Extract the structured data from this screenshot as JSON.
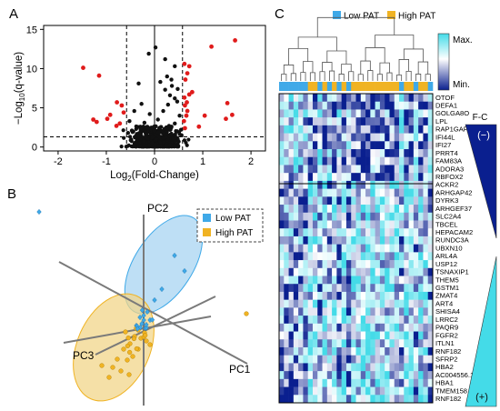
{
  "panels": {
    "a": {
      "letter": "A"
    },
    "b": {
      "letter": "B"
    },
    "c": {
      "letter": "C"
    }
  },
  "colors": {
    "low": "#3fa9e8",
    "high": "#f0b323",
    "sig": "#e01b1b",
    "nonsig": "#111111",
    "heat_dark": "#0a1f8f",
    "heat_light": "#44dbe8",
    "low_ellipse": "#a8d4f2",
    "high_ellipse": "#f2d58a"
  },
  "legend": {
    "low": "Low PAT",
    "high": "High PAT"
  },
  "volcano": {
    "xlabel_prefix": "Log",
    "xlabel_sub": "2",
    "xlabel_suffix": "(Fold-Change)",
    "ylabel_prefix": "−Log",
    "ylabel_sub": "10",
    "ylabel_suffix": "(q-value)",
    "x_ticks": [
      "-2",
      "-1",
      "0",
      "1",
      "2"
    ],
    "y_ticks": [
      "0",
      "5",
      "10",
      "15"
    ]
  },
  "chart_data": [
    {
      "type": "scatter",
      "xlim": [
        -2.3,
        2.3
      ],
      "ylim": [
        -0.5,
        15.5
      ],
      "x_ticks": [
        -2,
        -1,
        0,
        1,
        2
      ],
      "y_ticks": [
        0,
        5,
        10,
        15
      ],
      "thresholds": {
        "x": [
          -0.58,
          0.58
        ],
        "y": 1.3
      },
      "series": [
        {
          "significant": true,
          "points": [
            [
              -1.48,
              10.1
            ],
            [
              -1.15,
              9.1
            ],
            [
              -0.68,
              5.3
            ],
            [
              -0.78,
              5.7
            ],
            [
              -0.92,
              4.1
            ],
            [
              -0.98,
              3.6
            ],
            [
              -0.64,
              4.4
            ],
            [
              -1.2,
              3.2
            ],
            [
              -1.27,
              3.5
            ],
            [
              -0.72,
              3.0
            ],
            [
              -0.79,
              2.7
            ],
            [
              1.18,
              12.8
            ],
            [
              1.67,
              13.6
            ],
            [
              0.62,
              10.6
            ],
            [
              0.72,
              10.3
            ],
            [
              0.68,
              9.4
            ],
            [
              0.64,
              8.6
            ],
            [
              0.78,
              7.0
            ],
            [
              0.72,
              6.7
            ],
            [
              0.62,
              6.3
            ],
            [
              0.67,
              5.7
            ],
            [
              0.63,
              5.3
            ],
            [
              0.68,
              4.6
            ],
            [
              0.66,
              4.0
            ],
            [
              0.61,
              3.3
            ],
            [
              1.51,
              5.6
            ],
            [
              1.61,
              4.1
            ],
            [
              1.04,
              4.0
            ],
            [
              1.48,
              3.6
            ],
            [
              0.92,
              2.6
            ],
            [
              0.63,
              2.4
            ]
          ]
        },
        {
          "significant": false,
          "points": [
            [
              -0.12,
              11.9
            ],
            [
              0.02,
              12.7
            ],
            [
              0.22,
              11.2
            ],
            [
              0.42,
              10.3
            ],
            [
              0.26,
              9.0
            ],
            [
              0.35,
              8.6
            ],
            [
              0.12,
              8.3
            ],
            [
              0.48,
              7.4
            ],
            [
              0.22,
              7.3
            ],
            [
              -0.33,
              8.1
            ],
            [
              0.36,
              7.8
            ],
            [
              0.42,
              6.2
            ],
            [
              0.47,
              5.8
            ],
            [
              0.28,
              5.4
            ],
            [
              -0.27,
              5.5
            ],
            [
              0.32,
              6.6
            ],
            [
              -0.42,
              4.6
            ],
            [
              0.18,
              4.6
            ],
            [
              -0.1,
              4.2
            ],
            [
              0.52,
              4.0
            ],
            [
              -0.52,
              3.3
            ],
            [
              0.07,
              3.5
            ],
            [
              -0.21,
              3.1
            ],
            [
              0.42,
              3.0
            ],
            [
              0.3,
              2.7
            ],
            [
              -0.36,
              2.5
            ],
            [
              0.1,
              2.4
            ],
            [
              0.55,
              2.2
            ],
            [
              -0.47,
              2.1
            ],
            [
              0.0,
              2.0
            ],
            [
              -0.55,
              1.8
            ],
            [
              0.35,
              1.7
            ],
            [
              -0.18,
              1.6
            ],
            [
              0.56,
              1.5
            ],
            [
              -0.32,
              1.4
            ],
            [
              0.24,
              1.3
            ],
            [
              -0.05,
              1.25
            ],
            [
              0.45,
              1.2
            ]
          ]
        }
      ]
    },
    {
      "type": "scatter",
      "axes": [
        "PC1",
        "PC2",
        "PC3"
      ],
      "series": [
        {
          "name": "Low PAT",
          "points": []
        },
        {
          "name": "High PAT",
          "points": []
        }
      ]
    },
    {
      "type": "heatmap",
      "scale_labels": {
        "max": "Max.",
        "min": "Min."
      },
      "fc_label": "F-C",
      "fc_neg": "(−)",
      "fc_pos": "(+)",
      "column_groups": "LLLLLLHHLHLHLHLHHHHHHHHHHLHHLHHL",
      "genes": [
        "OTOF",
        "DEFA1",
        "GOLGA8O",
        "LPL",
        "RAP1GAP",
        "IFI44L",
        "IFI27",
        "PRRT4",
        "FAM83A",
        "ADORA3",
        "RBFOX2",
        "ACKR2",
        "ARHGAP42",
        "DYRK3",
        "ARHGEF37",
        "SLC2A4",
        "TBCEL",
        "HEPACAM2",
        "RUNDC3A",
        "UBXN10",
        "ARL4A",
        "USP12",
        "TSNAXIP1",
        "THEM5",
        "GSTM1",
        "ZMAT4",
        "ART4",
        "SHISA4",
        "LRRC2",
        "PAQR9",
        "FGFR2",
        "ITLN1",
        "RNF182",
        "SFRP2",
        "HBA2",
        "AC004556.1",
        "HBA1",
        "TMEM158",
        "RNF182"
      ],
      "split_after_row": 11
    }
  ]
}
